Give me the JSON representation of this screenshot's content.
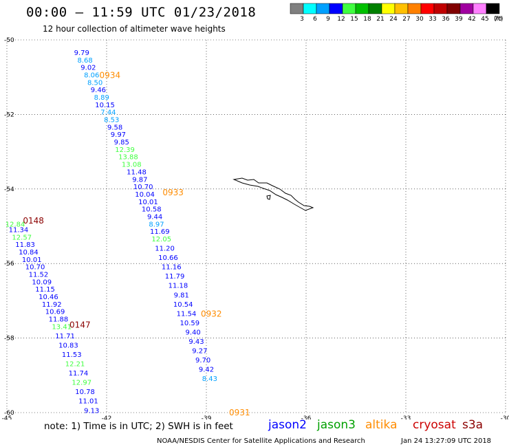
{
  "header": {
    "title": "00:00 – 11:59 UTC 01/23/2018",
    "subtitle": "12 hour collection of altimeter wave heights"
  },
  "colorbar": {
    "labels": [
      "3",
      "6",
      "9",
      "12",
      "15",
      "18",
      "21",
      "24",
      "27",
      "30",
      "33",
      "36",
      "39",
      "42",
      "45",
      "70"
    ],
    "unit": "(ft)",
    "colors": [
      "#808080",
      "#00ffff",
      "#00a0ff",
      "#0000ff",
      "#40ff40",
      "#00c000",
      "#008000",
      "#ffff00",
      "#ffc000",
      "#ff8000",
      "#ff0000",
      "#c00000",
      "#800000",
      "#a000a0",
      "#ff80ff",
      "#000000"
    ]
  },
  "map": {
    "lon_ticks": [
      "-45",
      "-42",
      "-39",
      "-36",
      "-33",
      "-30"
    ],
    "lat_ticks": [
      "-50",
      "-52",
      "-54",
      "-56",
      "-58",
      "-60"
    ],
    "passes": [
      {
        "label": "0934",
        "color": "#ff8c00"
      },
      {
        "label": "0148",
        "color": "#8b0000"
      },
      {
        "label": "0933",
        "color": "#ff8c00"
      },
      {
        "label": "0147",
        "color": "#8b0000"
      },
      {
        "label": "0932",
        "color": "#ff8c00"
      },
      {
        "label": "0931",
        "color": "#ff8c00"
      }
    ],
    "tracks": [
      {
        "color": "#0000ff",
        "lon": -42.75,
        "lat": -50.35,
        "v": "9.79"
      },
      {
        "color": "#00a0ff",
        "lon": -42.65,
        "lat": -50.55,
        "v": "8.68"
      },
      {
        "color": "#0000ff",
        "lon": -42.55,
        "lat": -50.75,
        "v": "9.02"
      },
      {
        "color": "#00a0ff",
        "lon": -42.45,
        "lat": -50.95,
        "v": "8.06"
      },
      {
        "color": "#00a0ff",
        "lon": -42.35,
        "lat": -51.15,
        "v": "8.50"
      },
      {
        "color": "#0000ff",
        "lon": -42.25,
        "lat": -51.35,
        "v": "9.46"
      },
      {
        "color": "#00a0ff",
        "lon": -42.15,
        "lat": -51.55,
        "v": "8.89"
      },
      {
        "color": "#0000ff",
        "lon": -42.05,
        "lat": -51.75,
        "v": "10.15"
      },
      {
        "color": "#00a0ff",
        "lon": -41.95,
        "lat": -51.95,
        "v": "7.44"
      },
      {
        "color": "#00a0ff",
        "lon": -41.85,
        "lat": -52.15,
        "v": "8.53"
      },
      {
        "color": "#0000ff",
        "lon": -41.75,
        "lat": -52.35,
        "v": "9.58"
      },
      {
        "color": "#0000ff",
        "lon": -41.65,
        "lat": -52.55,
        "v": "9.97"
      },
      {
        "color": "#0000ff",
        "lon": -41.55,
        "lat": -52.75,
        "v": "9.85"
      },
      {
        "color": "#40ff40",
        "lon": -41.45,
        "lat": -52.95,
        "v": "12.39"
      },
      {
        "color": "#40ff40",
        "lon": -41.35,
        "lat": -53.15,
        "v": "13.88"
      },
      {
        "color": "#40ff40",
        "lon": -41.25,
        "lat": -53.35,
        "v": "13.08"
      },
      {
        "color": "#0000ff",
        "lon": -41.1,
        "lat": -53.55,
        "v": "11.48"
      },
      {
        "color": "#0000ff",
        "lon": -41.0,
        "lat": -53.75,
        "v": "9.87"
      },
      {
        "color": "#0000ff",
        "lon": -40.9,
        "lat": -53.95,
        "v": "10.70"
      },
      {
        "color": "#0000ff",
        "lon": -40.85,
        "lat": -54.15,
        "v": "10.04"
      },
      {
        "color": "#0000ff",
        "lon": -40.75,
        "lat": -54.35,
        "v": "10.01"
      },
      {
        "color": "#0000ff",
        "lon": -40.65,
        "lat": -54.55,
        "v": "10.58"
      },
      {
        "color": "#0000ff",
        "lon": -40.55,
        "lat": -54.75,
        "v": "9.44"
      },
      {
        "color": "#00a0ff",
        "lon": -40.5,
        "lat": -54.95,
        "v": "8.97"
      },
      {
        "color": "#0000ff",
        "lon": -40.4,
        "lat": -55.15,
        "v": "11.69"
      },
      {
        "color": "#40ff40",
        "lon": -40.35,
        "lat": -55.35,
        "v": "12.05"
      },
      {
        "color": "#0000ff",
        "lon": -40.25,
        "lat": -55.6,
        "v": "11.20"
      },
      {
        "color": "#0000ff",
        "lon": -40.15,
        "lat": -55.85,
        "v": "10.66"
      },
      {
        "color": "#0000ff",
        "lon": -40.05,
        "lat": -56.1,
        "v": "11.16"
      },
      {
        "color": "#0000ff",
        "lon": -39.95,
        "lat": -56.35,
        "v": "11.79"
      },
      {
        "color": "#0000ff",
        "lon": -39.85,
        "lat": -56.6,
        "v": "11.18"
      },
      {
        "color": "#0000ff",
        "lon": -39.75,
        "lat": -56.85,
        "v": "9.81"
      },
      {
        "color": "#0000ff",
        "lon": -39.7,
        "lat": -57.1,
        "v": "10.54"
      },
      {
        "color": "#0000ff",
        "lon": -39.6,
        "lat": -57.35,
        "v": "11.54"
      },
      {
        "color": "#0000ff",
        "lon": -39.5,
        "lat": -57.6,
        "v": "10.59"
      },
      {
        "color": "#0000ff",
        "lon": -39.4,
        "lat": -57.85,
        "v": "9.40"
      },
      {
        "color": "#0000ff",
        "lon": -39.3,
        "lat": -58.1,
        "v": "9.43"
      },
      {
        "color": "#0000ff",
        "lon": -39.2,
        "lat": -58.35,
        "v": "9.27"
      },
      {
        "color": "#0000ff",
        "lon": -39.1,
        "lat": -58.6,
        "v": "9.70"
      },
      {
        "color": "#0000ff",
        "lon": -39.0,
        "lat": -58.85,
        "v": "9.42"
      },
      {
        "color": "#00a0ff",
        "lon": -38.9,
        "lat": -59.1,
        "v": "8.43"
      },
      {
        "color": "#40ff40",
        "lon": -44.75,
        "lat": -54.95,
        "v": "12.84"
      },
      {
        "color": "#0000ff",
        "lon": -44.65,
        "lat": -55.1,
        "v": "11.34"
      },
      {
        "color": "#40ff40",
        "lon": -44.55,
        "lat": -55.3,
        "v": "12.57"
      },
      {
        "color": "#0000ff",
        "lon": -44.45,
        "lat": -55.5,
        "v": "11.83"
      },
      {
        "color": "#0000ff",
        "lon": -44.35,
        "lat": -55.7,
        "v": "10.84"
      },
      {
        "color": "#0000ff",
        "lon": -44.25,
        "lat": -55.9,
        "v": "10.01"
      },
      {
        "color": "#0000ff",
        "lon": -44.15,
        "lat": -56.1,
        "v": "10.70"
      },
      {
        "color": "#0000ff",
        "lon": -44.05,
        "lat": -56.3,
        "v": "11.52"
      },
      {
        "color": "#0000ff",
        "lon": -43.95,
        "lat": -56.5,
        "v": "10.09"
      },
      {
        "color": "#0000ff",
        "lon": -43.85,
        "lat": -56.7,
        "v": "11.15"
      },
      {
        "color": "#0000ff",
        "lon": -43.75,
        "lat": -56.9,
        "v": "10.46"
      },
      {
        "color": "#0000ff",
        "lon": -43.65,
        "lat": -57.1,
        "v": "11.92"
      },
      {
        "color": "#0000ff",
        "lon": -43.55,
        "lat": -57.3,
        "v": "10.69"
      },
      {
        "color": "#0000ff",
        "lon": -43.45,
        "lat": -57.5,
        "v": "11.88"
      },
      {
        "color": "#40ff40",
        "lon": -43.35,
        "lat": -57.7,
        "v": "13.41"
      },
      {
        "color": "#0000ff",
        "lon": -43.25,
        "lat": -57.95,
        "v": "11.71"
      },
      {
        "color": "#0000ff",
        "lon": -43.15,
        "lat": -58.2,
        "v": "10.83"
      },
      {
        "color": "#0000ff",
        "lon": -43.05,
        "lat": -58.45,
        "v": "11.53"
      },
      {
        "color": "#40ff40",
        "lon": -42.95,
        "lat": -58.7,
        "v": "12.21"
      },
      {
        "color": "#0000ff",
        "lon": -42.85,
        "lat": -58.95,
        "v": "11.74"
      },
      {
        "color": "#40ff40",
        "lon": -42.75,
        "lat": -59.2,
        "v": "12.97"
      },
      {
        "color": "#0000ff",
        "lon": -42.65,
        "lat": -59.45,
        "v": "10.78"
      },
      {
        "color": "#0000ff",
        "lon": -42.55,
        "lat": -59.7,
        "v": "11.01"
      },
      {
        "color": "#0000ff",
        "lon": -42.45,
        "lat": -59.95,
        "v": "9.13"
      }
    ]
  },
  "footer": {
    "note": "note: 1) Time is in UTC; 2) SWH is in feet",
    "satellites": [
      {
        "name": "jason2",
        "color": "#0000ff"
      },
      {
        "name": "jason3",
        "color": "#00a000"
      },
      {
        "name": "altika",
        "color": "#ff8c00"
      },
      {
        "name": "cryosat",
        "color": "#cc0000"
      },
      {
        "name": "s3a",
        "color": "#8b0000"
      }
    ],
    "credit": "NOAA/NESDIS Center for Satellite Applications and Research",
    "timestamp": "Jan 24 13:27:09 UTC 2018"
  }
}
